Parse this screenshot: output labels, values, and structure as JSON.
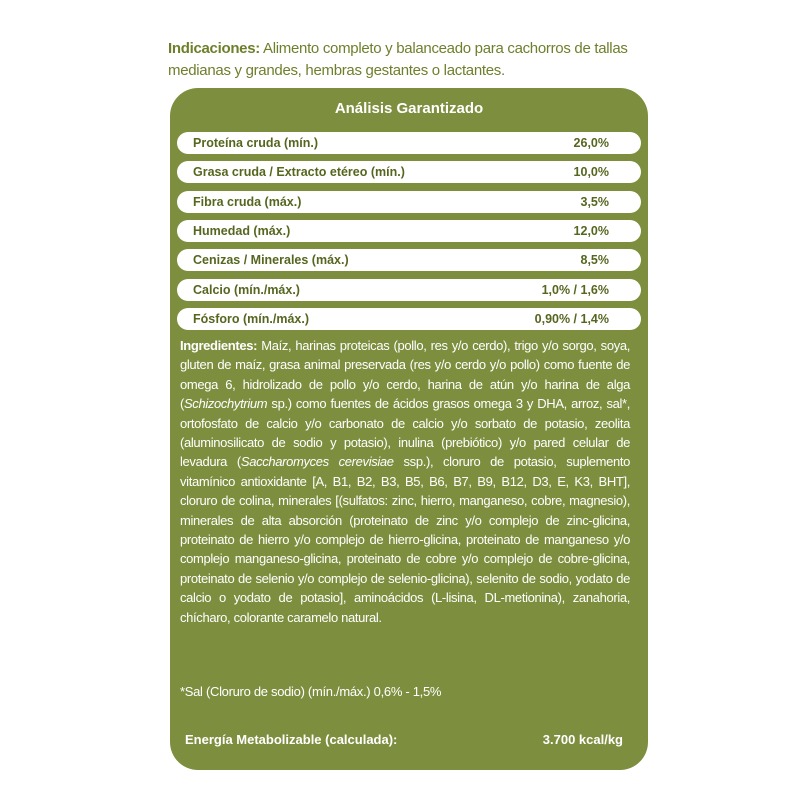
{
  "header": {
    "label": "Indicaciones:",
    "text": "Alimento completo y balanceado para cachorros de tallas medianas y grandes, hembras gestantes o lactantes."
  },
  "analysis": {
    "title": "Análisis Garantizado",
    "rows": [
      [
        "Proteína cruda (mín.)",
        "26,0%"
      ],
      [
        "Grasa cruda / Extracto etéreo (mín.)",
        "10,0%"
      ],
      [
        "Fibra cruda (máx.)",
        "3,5%"
      ],
      [
        "Humedad (máx.)",
        "12,0%"
      ],
      [
        "Cenizas / Minerales (máx.)",
        "8,5%"
      ],
      [
        "Calcio (mín./máx.)",
        "1,0% / 1,6%"
      ],
      [
        "Fósforo (mín./máx.)",
        "0,90% / 1,4%"
      ]
    ]
  },
  "ingredients": {
    "label": "Ingredientes:",
    "parts": [
      "Maíz, harinas proteicas (pollo, res y/o cerdo), trigo y/o sorgo, soya, gluten de maíz, grasa animal preservada (res y/o cerdo y/o pollo) como fuente de omega 6, hidrolizado de pollo y/o cerdo, harina de atún y/o harina de alga (",
      "Schizochytrium",
      " sp.) como fuentes de ácidos grasos omega 3 y DHA, arroz, sal*, ortofosfato de calcio y/o carbonato de calcio y/o sorbato de potasio, zeolita (aluminosilicato de sodio y potasio), inulina (prebiótico) y/o pared celular de levadura (",
      "Saccharomyces cerevisiae",
      " ssp.), cloruro de potasio, suplemento vitamínico antioxidante [A, B1, B2, B3, B5, B6, B7, B9, B12, D3, E, K3, BHT], cloruro de colina, minerales [(sulfatos: zinc, hierro, manganeso, cobre, magnesio), minerales de alta absorción (proteinato de zinc y/o complejo de zinc-glicina, proteinato de hierro y/o complejo de hierro-glicina, proteinato de manganeso y/o complejo manganeso-glicina, proteinato de cobre y/o complejo de cobre-glicina, proteinato de selenio y/o complejo de selenio-glicina), selenito de sodio, yodato de calcio o yodato de potasio], aminoácidos (L-lisina, DL-metionina), zanahoria, chícharo, colorante caramelo natural."
    ]
  },
  "salt_note": "*Sal (Cloruro de sodio) (mín./máx.) 0,6% - 1,5%",
  "energy": {
    "label": "Energía Metabolizable (calculada):",
    "value": "3.700 kcal/kg"
  }
}
